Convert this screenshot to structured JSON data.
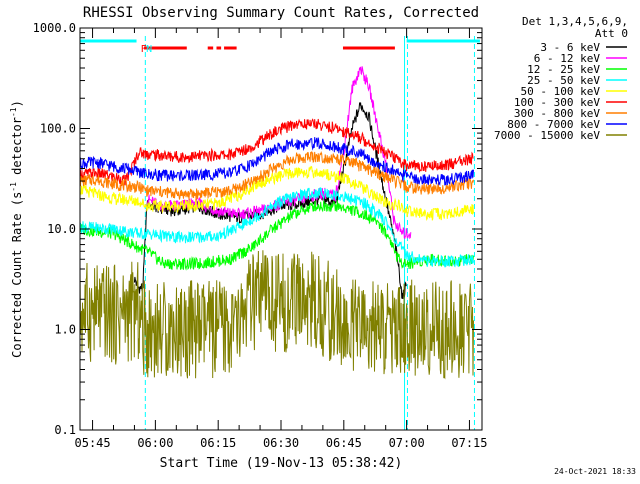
{
  "chart_data": {
    "type": "line",
    "title": "RHESSI Observing Summary Count Rates, Corrected",
    "xlabel": "Start Time (19-Nov-13 05:38:42)",
    "ylabel": "Corrected Count Rate (s⁻¹ detector⁻¹)",
    "ylabel_parts": [
      "Corrected Count Rate (s",
      "-1",
      " detector",
      "-1",
      ")"
    ],
    "y_scale": "log",
    "ylim": [
      0.1,
      1000
    ],
    "y_ticks": [
      {
        "value": 0.1,
        "label": "0.1"
      },
      {
        "value": 1,
        "label": "1.0"
      },
      {
        "value": 10,
        "label": "10.0"
      },
      {
        "value": 100,
        "label": "100.0"
      },
      {
        "value": 1000,
        "label": "1000.0"
      }
    ],
    "xlim_minutes": [
      342,
      438
    ],
    "x_ticks": [
      {
        "minute": 345,
        "label": "05:45"
      },
      {
        "minute": 360,
        "label": "06:00"
      },
      {
        "minute": 375,
        "label": "06:15"
      },
      {
        "minute": 390,
        "label": "06:30"
      },
      {
        "minute": 405,
        "label": "06:45"
      },
      {
        "minute": 420,
        "label": "07:00"
      },
      {
        "minute": 435,
        "label": "07:15"
      }
    ],
    "legend_title": [
      "Det 1,3,4,5,6,9,",
      "Att 0"
    ],
    "legend_placement": "right",
    "footer_date": "24-Oct-2021 18:33",
    "markers": [
      {
        "label": "F",
        "color": "#ff0000",
        "minute": 357.2
      },
      {
        "label": "N",
        "color": "#00ffff",
        "minute": 358.5
      }
    ],
    "night_bars": [
      [
        342,
        355.5
      ],
      [
        420,
        437.5
      ]
    ],
    "flare_bars": [
      [
        357.3,
        367.5
      ],
      [
        372.5,
        373.8
      ],
      [
        374.6,
        375.7
      ],
      [
        376.4,
        379.4
      ],
      [
        404.8,
        417.2
      ]
    ],
    "eclipse_lines": [
      {
        "minute": 342,
        "style": "solid"
      },
      {
        "minute": 357.6,
        "style": "dashed"
      },
      {
        "minute": 419.5,
        "style": "solid"
      },
      {
        "minute": 420.2,
        "style": "dashed"
      },
      {
        "minute": 436.2,
        "style": "dashed"
      }
    ],
    "series": [
      {
        "name": "3 - 6 keV",
        "color": "#000000",
        "points": [
          [
            355,
            3.2
          ],
          [
            356,
            2.6
          ],
          [
            357,
            2.6
          ],
          [
            358,
            18
          ],
          [
            361,
            16
          ],
          [
            365,
            15
          ],
          [
            370,
            17
          ],
          [
            375,
            14
          ],
          [
            380,
            13
          ],
          [
            385,
            14
          ],
          [
            390,
            17
          ],
          [
            395,
            18
          ],
          [
            400,
            20
          ],
          [
            403,
            18
          ],
          [
            405,
            40
          ],
          [
            407,
            100
          ],
          [
            409,
            175
          ],
          [
            411,
            130
          ],
          [
            413,
            50
          ],
          [
            415,
            20
          ],
          [
            417,
            8
          ],
          [
            418,
            4.5
          ],
          [
            419,
            2
          ],
          [
            420,
            3
          ]
        ]
      },
      {
        "name": "6 - 12 keV",
        "color": "#ff00ff",
        "points": [
          [
            358,
            20
          ],
          [
            361,
            17
          ],
          [
            365,
            17
          ],
          [
            370,
            18
          ],
          [
            375,
            15
          ],
          [
            380,
            14
          ],
          [
            385,
            15
          ],
          [
            390,
            18
          ],
          [
            395,
            20
          ],
          [
            400,
            23
          ],
          [
            403,
            21
          ],
          [
            405,
            60
          ],
          [
            407,
            250
          ],
          [
            409,
            400
          ],
          [
            411,
            260
          ],
          [
            413,
            110
          ],
          [
            415,
            45
          ],
          [
            417,
            12
          ],
          [
            419,
            9
          ],
          [
            421,
            9
          ]
        ]
      },
      {
        "name": "12 - 25 keV",
        "color": "#00ff00",
        "points": [
          [
            342,
            10
          ],
          [
            350,
            9
          ],
          [
            356,
            6.5
          ],
          [
            358,
            6
          ],
          [
            362,
            4.5
          ],
          [
            370,
            4.5
          ],
          [
            378,
            5
          ],
          [
            383,
            6.5
          ],
          [
            388,
            10
          ],
          [
            393,
            14
          ],
          [
            398,
            17
          ],
          [
            403,
            17
          ],
          [
            408,
            15
          ],
          [
            413,
            12
          ],
          [
            416,
            8
          ],
          [
            418,
            5
          ],
          [
            420,
            4.5
          ],
          [
            425,
            5
          ],
          [
            430,
            4.8
          ],
          [
            436,
            5
          ]
        ]
      },
      {
        "name": "25 - 50 keV",
        "color": "#00ffff",
        "points": [
          [
            342,
            10.5
          ],
          [
            350,
            10
          ],
          [
            356,
            9
          ],
          [
            358,
            9
          ],
          [
            365,
            8.2
          ],
          [
            370,
            8.3
          ],
          [
            375,
            8.5
          ],
          [
            380,
            10.5
          ],
          [
            385,
            14
          ],
          [
            390,
            19
          ],
          [
            395,
            22
          ],
          [
            400,
            23
          ],
          [
            405,
            21
          ],
          [
            410,
            18
          ],
          [
            415,
            12
          ],
          [
            418,
            7
          ],
          [
            420,
            5.5
          ],
          [
            425,
            4.8
          ],
          [
            430,
            4.8
          ],
          [
            436,
            5
          ]
        ]
      },
      {
        "name": "50 - 100 keV",
        "color": "#ffff00",
        "points": [
          [
            342,
            25
          ],
          [
            346,
            22
          ],
          [
            350,
            20
          ],
          [
            356,
            19
          ],
          [
            358,
            17
          ],
          [
            365,
            17
          ],
          [
            370,
            17
          ],
          [
            375,
            18
          ],
          [
            380,
            22
          ],
          [
            385,
            29
          ],
          [
            390,
            34
          ],
          [
            395,
            37
          ],
          [
            400,
            36
          ],
          [
            405,
            32
          ],
          [
            410,
            25
          ],
          [
            415,
            18
          ],
          [
            418,
            17
          ],
          [
            420,
            15
          ],
          [
            425,
            14
          ],
          [
            430,
            14
          ],
          [
            436,
            16
          ]
        ]
      },
      {
        "name": "100 - 300 keV",
        "color": "#ff0000",
        "points": [
          [
            342,
            35
          ],
          [
            346,
            36
          ],
          [
            350,
            33
          ],
          [
            353,
            30
          ],
          [
            356,
            58
          ],
          [
            358,
            56
          ],
          [
            363,
            53
          ],
          [
            368,
            52
          ],
          [
            373,
            54
          ],
          [
            378,
            55
          ],
          [
            383,
            66
          ],
          [
            388,
            90
          ],
          [
            393,
            110
          ],
          [
            398,
            112
          ],
          [
            403,
            100
          ],
          [
            408,
            85
          ],
          [
            413,
            65
          ],
          [
            418,
            48
          ],
          [
            420,
            43
          ],
          [
            425,
            42
          ],
          [
            430,
            44
          ],
          [
            436,
            50
          ]
        ]
      },
      {
        "name": "300 - 800 keV",
        "color": "#ff7f00",
        "points": [
          [
            342,
            30
          ],
          [
            346,
            31
          ],
          [
            350,
            28
          ],
          [
            353,
            27
          ],
          [
            356,
            26
          ],
          [
            358,
            24
          ],
          [
            363,
            23
          ],
          [
            368,
            22
          ],
          [
            373,
            23
          ],
          [
            378,
            24
          ],
          [
            383,
            29
          ],
          [
            388,
            40
          ],
          [
            393,
            50
          ],
          [
            398,
            53
          ],
          [
            403,
            50
          ],
          [
            408,
            44
          ],
          [
            413,
            36
          ],
          [
            418,
            29
          ],
          [
            420,
            26
          ],
          [
            425,
            25
          ],
          [
            430,
            26
          ],
          [
            436,
            29
          ]
        ]
      },
      {
        "name": "800 - 7000 keV",
        "color": "#0000ff",
        "points": [
          [
            342,
            45
          ],
          [
            346,
            46
          ],
          [
            350,
            42
          ],
          [
            353,
            40
          ],
          [
            356,
            37
          ],
          [
            358,
            35
          ],
          [
            363,
            34
          ],
          [
            368,
            34
          ],
          [
            373,
            35
          ],
          [
            378,
            36
          ],
          [
            383,
            44
          ],
          [
            388,
            60
          ],
          [
            393,
            70
          ],
          [
            398,
            72
          ],
          [
            403,
            66
          ],
          [
            408,
            58
          ],
          [
            413,
            45
          ],
          [
            418,
            36
          ],
          [
            420,
            33
          ],
          [
            425,
            31
          ],
          [
            430,
            31
          ],
          [
            436,
            34
          ]
        ]
      },
      {
        "name": "7000 - 15000 keV",
        "color": "#808000",
        "points": [
          [
            342,
            1.5
          ],
          [
            346,
            1.5
          ],
          [
            350,
            1.4
          ],
          [
            354,
            1.5
          ],
          [
            355,
            1.5
          ],
          [
            356,
            1.5
          ],
          [
            357,
            1.0
          ],
          [
            360,
            1.0
          ],
          [
            380,
            1.0
          ],
          [
            381,
            1.5
          ],
          [
            384,
            1.9
          ],
          [
            387,
            2.0
          ],
          [
            390,
            1.8
          ],
          [
            393,
            1.9
          ],
          [
            396,
            2.0
          ],
          [
            399,
            1.8
          ],
          [
            402,
            1.5
          ],
          [
            404,
            1.2
          ],
          [
            405,
            1.0
          ],
          [
            410,
            1.0
          ],
          [
            418,
            1.0
          ],
          [
            419,
            1.0
          ],
          [
            420,
            1.0
          ],
          [
            436,
            1.0
          ]
        ]
      }
    ]
  }
}
